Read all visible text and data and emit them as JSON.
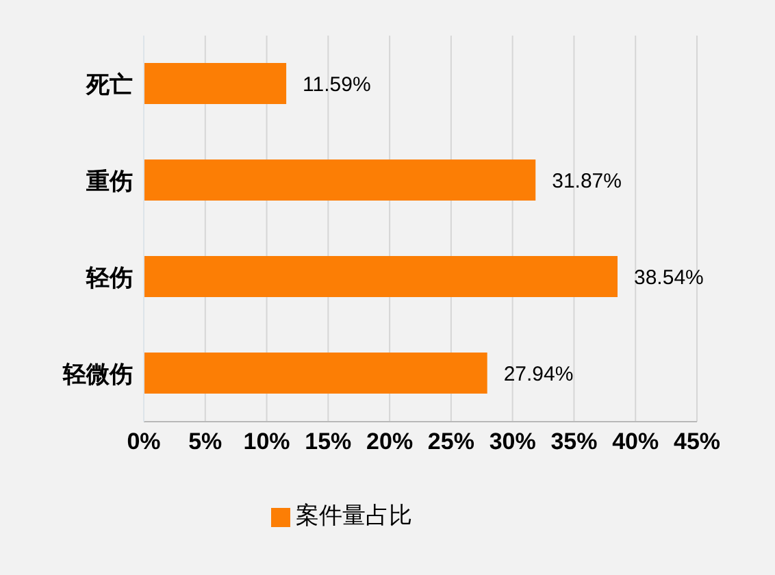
{
  "chart_data": {
    "type": "bar",
    "orientation": "horizontal",
    "categories": [
      "死亡",
      "重伤",
      "轻伤",
      "轻微伤"
    ],
    "series": [
      {
        "name": "案件量占比",
        "color": "#fc7e05",
        "values": [
          11.59,
          31.87,
          38.54,
          27.94
        ],
        "value_labels": [
          "11.59%",
          "31.87%",
          "38.54%",
          "27.94%"
        ]
      }
    ],
    "xlim": [
      0,
      45
    ],
    "xticks": [
      {
        "value": 0,
        "label": "0%"
      },
      {
        "value": 5,
        "label": "5%"
      },
      {
        "value": 10,
        "label": "10%"
      },
      {
        "value": 15,
        "label": "15%"
      },
      {
        "value": 20,
        "label": "20%"
      },
      {
        "value": 25,
        "label": "25%"
      },
      {
        "value": 30,
        "label": "30%"
      },
      {
        "value": 35,
        "label": "35%"
      },
      {
        "value": 40,
        "label": "40%"
      },
      {
        "value": 45,
        "label": "45%"
      }
    ],
    "grid": "x",
    "legend": "bottom"
  }
}
